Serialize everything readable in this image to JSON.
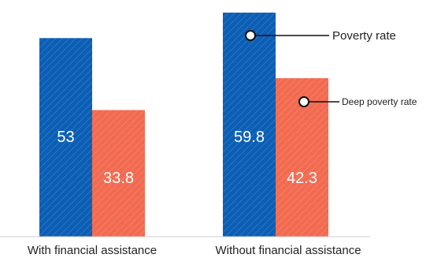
{
  "chart_data": {
    "type": "bar",
    "categories": [
      "With financial assistance",
      "Without financial assistance"
    ],
    "series": [
      {
        "name": "Poverty rate",
        "values": [
          53,
          59.8
        ],
        "color": "#0b5eb5"
      },
      {
        "name": "Deep poverty rate",
        "values": [
          33.8,
          42.3
        ],
        "color": "#f26a50"
      }
    ],
    "value_labels": [
      [
        "53",
        "59.8"
      ],
      [
        "33.8",
        "42.3"
      ]
    ],
    "ylim": [
      0,
      65
    ],
    "grid": false,
    "legend": "callouts on right-hand bars",
    "bar_pattern": "diagonal-hatch"
  }
}
